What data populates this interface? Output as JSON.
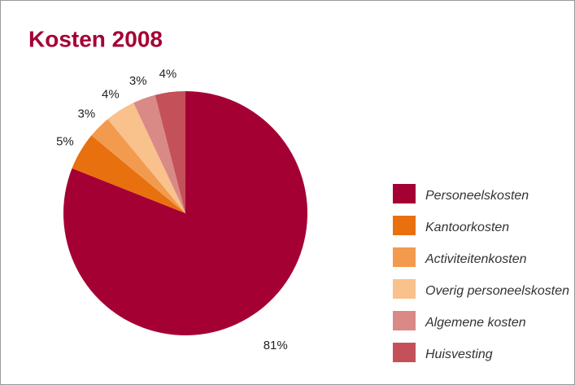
{
  "chart_data": {
    "type": "pie",
    "title": "Kosten 2008",
    "categories": [
      "Personeelskosten",
      "Kantoorkosten",
      "Activiteitenkosten",
      "Overig personeelskosten",
      "Algemene kosten",
      "Huisvesting"
    ],
    "values": [
      81,
      5,
      3,
      4,
      3,
      4
    ],
    "value_labels": [
      "81%",
      "5%",
      "3%",
      "4%",
      "3%",
      "4%"
    ],
    "colors": [
      "#a50034",
      "#e8700f",
      "#f29a4e",
      "#f9c18c",
      "#d98a86",
      "#c4515a"
    ],
    "legend": "right"
  }
}
